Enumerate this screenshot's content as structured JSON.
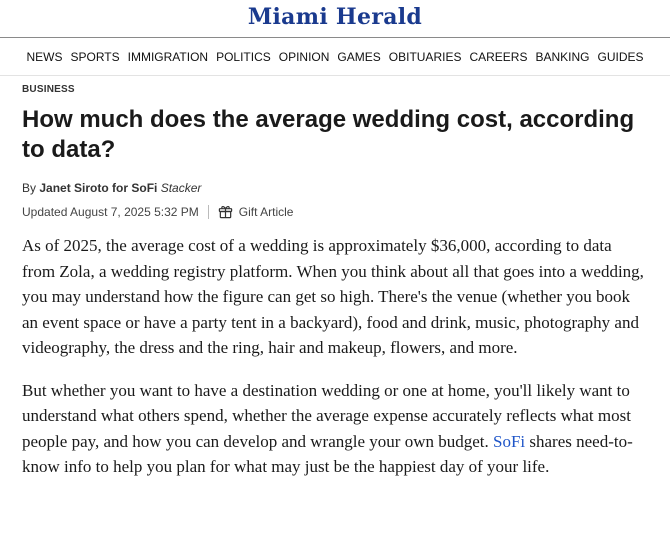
{
  "site": {
    "name": "Miami Herald"
  },
  "nav": {
    "items": [
      {
        "label": "NEWS"
      },
      {
        "label": "SPORTS"
      },
      {
        "label": "IMMIGRATION"
      },
      {
        "label": "POLITICS"
      },
      {
        "label": "OPINION"
      },
      {
        "label": "GAMES"
      },
      {
        "label": "OBITUARIES"
      },
      {
        "label": "CAREERS"
      },
      {
        "label": "BANKING"
      },
      {
        "label": "GUIDES"
      }
    ]
  },
  "article": {
    "section": "BUSINESS",
    "title": "How much does the average wedding cost, according to data?",
    "byline": {
      "prefix": "By",
      "author": "Janet Siroto for SoFi",
      "outlet": "Stacker"
    },
    "updated": "Updated August 7, 2025 5:32 PM",
    "gift_label": "Gift Article",
    "paragraph1": "As of 2025, the average cost of a wedding is approximately $36,000, according to data from Zola, a wedding registry platform. When you think about all that goes into a wedding, you may understand how the figure can get so high. There's the venue (whether you book an event space or have a party tent in a backyard), food and drink, music, photography and videography, the dress and the ring, hair and makeup, flowers, and more.",
    "paragraph2_before": "But whether you want to have a destination wedding or one at home, you'll likely want to understand what others spend, whether the average expense accurately reflects what most people pay, and how you can develop and wrangle your own budget. ",
    "paragraph2_link": "SoFi",
    "paragraph2_after": " shares need-to-know info to help you plan for what may just be the happiest day of your life."
  },
  "colors": {
    "logo": "#1a3a8e",
    "link": "#1f55c8"
  }
}
